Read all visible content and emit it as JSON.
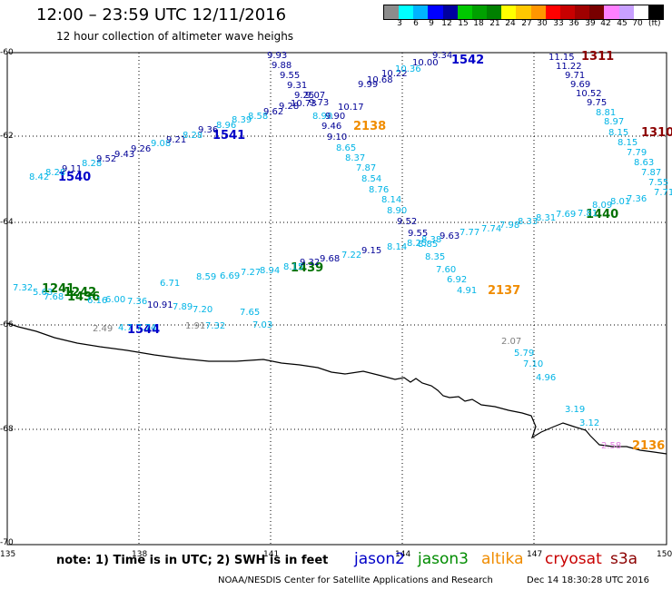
{
  "header": {
    "title": "12:00 – 23:59 UTC 12/11/2016",
    "subtitle": "12 hour collection of altimeter wave heighs"
  },
  "colorbar": {
    "colors": [
      "#8c8c8c",
      "#00ffff",
      "#00b4ff",
      "#0000ff",
      "#0000a0",
      "#00c800",
      "#00a000",
      "#008000",
      "#ffff00",
      "#ffc800",
      "#ff9600",
      "#ff0000",
      "#c80000",
      "#a00000",
      "#780000",
      "#ff80ff",
      "#c8a0ff",
      "#ffffff",
      "#000000"
    ],
    "ticks": [
      "3",
      "6",
      "9",
      "12",
      "15",
      "18",
      "21",
      "24",
      "27",
      "30",
      "33",
      "36",
      "39",
      "42",
      "45",
      "70"
    ],
    "unit": "(ft)"
  },
  "map": {
    "lat_labels": [
      "-60",
      "-62",
      "-64",
      "-66",
      "-68",
      "-70"
    ],
    "lon_labels": [
      "135",
      "138",
      "141",
      "144",
      "147",
      "150"
    ]
  },
  "passes": [
    {
      "label": "1540",
      "color": "#0000c8"
    },
    {
      "label": "1541",
      "color": "#0000c8"
    },
    {
      "label": "1542",
      "color": "#0000c8"
    },
    {
      "label": "1544",
      "color": "#0000c8"
    },
    {
      "label": "1241",
      "color": "#007000"
    },
    {
      "label": "1242",
      "color": "#007000"
    },
    {
      "label": "1436",
      "color": "#007000"
    },
    {
      "label": "1439",
      "color": "#007000"
    },
    {
      "label": "1440",
      "color": "#007000"
    },
    {
      "label": "2136",
      "color": "#f08c00"
    },
    {
      "label": "2137",
      "color": "#f08c00"
    },
    {
      "label": "2138",
      "color": "#f08c00"
    },
    {
      "label": "1310",
      "color": "#8c0000"
    },
    {
      "label": "1311",
      "color": "#8c0000"
    }
  ],
  "measurements": [
    {
      "v": "8.42",
      "c": "#00b4e6"
    },
    {
      "v": "8.28",
      "c": "#00b4e6"
    },
    {
      "v": "9.11",
      "c": "#000096"
    },
    {
      "v": "8.28",
      "c": "#00b4e6"
    },
    {
      "v": "9.52",
      "c": "#000096"
    },
    {
      "v": "9.43",
      "c": "#000096"
    },
    {
      "v": "9.26",
      "c": "#000096"
    },
    {
      "v": "9.08",
      "c": "#00b4e6"
    },
    {
      "v": "9.21",
      "c": "#000096"
    },
    {
      "v": "8.28",
      "c": "#00b4e6"
    },
    {
      "v": "9.36",
      "c": "#000096"
    },
    {
      "v": "8.96",
      "c": "#00b4e6"
    },
    {
      "v": "8.39",
      "c": "#00b4e6"
    },
    {
      "v": "8.58",
      "c": "#00b4e6"
    },
    {
      "v": "9.62",
      "c": "#000096"
    },
    {
      "v": "9.28",
      "c": "#000096"
    },
    {
      "v": "9.93",
      "c": "#000096"
    },
    {
      "v": "9.88",
      "c": "#000096"
    },
    {
      "v": "9.55",
      "c": "#000096"
    },
    {
      "v": "9.31",
      "c": "#000096"
    },
    {
      "v": "9.25",
      "c": "#000096"
    },
    {
      "v": "9.07",
      "c": "#000096"
    },
    {
      "v": "10.73",
      "c": "#000096"
    },
    {
      "v": "9.73",
      "c": "#000096"
    },
    {
      "v": "8.90",
      "c": "#00b4e6"
    },
    {
      "v": "9.46",
      "c": "#000096"
    },
    {
      "v": "9.10",
      "c": "#000096"
    },
    {
      "v": "8.65",
      "c": "#00b4e6"
    },
    {
      "v": "8.37",
      "c": "#00b4e6"
    },
    {
      "v": "7.87",
      "c": "#00b4e6"
    },
    {
      "v": "8.54",
      "c": "#00b4e6"
    },
    {
      "v": "8.76",
      "c": "#00b4e6"
    },
    {
      "v": "8.14",
      "c": "#00b4e6"
    },
    {
      "v": "8.90",
      "c": "#00b4e6"
    },
    {
      "v": "9.52",
      "c": "#000096"
    },
    {
      "v": "9.55",
      "c": "#000096"
    },
    {
      "v": "8.85",
      "c": "#00b4e6"
    },
    {
      "v": "8.35",
      "c": "#00b4e6"
    },
    {
      "v": "7.60",
      "c": "#00b4e6"
    },
    {
      "v": "6.92",
      "c": "#00b4e6"
    },
    {
      "v": "4.91",
      "c": "#00b4e6"
    },
    {
      "v": "9.90",
      "c": "#000096"
    },
    {
      "v": "10.17",
      "c": "#000096"
    },
    {
      "v": "9.99",
      "c": "#000096"
    },
    {
      "v": "10.68",
      "c": "#000096"
    },
    {
      "v": "10.22",
      "c": "#000096"
    },
    {
      "v": "10.36",
      "c": "#00b4e6"
    },
    {
      "v": "10.00",
      "c": "#000096"
    },
    {
      "v": "9.34",
      "c": "#000096"
    },
    {
      "v": "11.15",
      "c": "#000096"
    },
    {
      "v": "11.22",
      "c": "#000096"
    },
    {
      "v": "9.71",
      "c": "#000096"
    },
    {
      "v": "9.69",
      "c": "#000096"
    },
    {
      "v": "10.52",
      "c": "#000096"
    },
    {
      "v": "9.75",
      "c": "#000096"
    },
    {
      "v": "8.81",
      "c": "#00b4e6"
    },
    {
      "v": "8.97",
      "c": "#00b4e6"
    },
    {
      "v": "8.15",
      "c": "#00b4e6"
    },
    {
      "v": "8.15",
      "c": "#00b4e6"
    },
    {
      "v": "7.79",
      "c": "#00b4e6"
    },
    {
      "v": "8.63",
      "c": "#00b4e6"
    },
    {
      "v": "7.87",
      "c": "#00b4e6"
    },
    {
      "v": "7.55",
      "c": "#00b4e6"
    },
    {
      "v": "7.71",
      "c": "#00b4e6"
    },
    {
      "v": "7.36",
      "c": "#00b4e6"
    },
    {
      "v": "8.01",
      "c": "#00b4e6"
    },
    {
      "v": "8.09",
      "c": "#00b4e6"
    },
    {
      "v": "7.81",
      "c": "#00b4e6"
    },
    {
      "v": "7.69",
      "c": "#00b4e6"
    },
    {
      "v": "8.31",
      "c": "#00b4e6"
    },
    {
      "v": "8.33",
      "c": "#00b4e6"
    },
    {
      "v": "7.98",
      "c": "#00b4e6"
    },
    {
      "v": "7.74",
      "c": "#00b4e6"
    },
    {
      "v": "7.77",
      "c": "#00b4e6"
    },
    {
      "v": "9.63",
      "c": "#000096"
    },
    {
      "v": "8.38",
      "c": "#00b4e6"
    },
    {
      "v": "8.25",
      "c": "#00b4e6"
    },
    {
      "v": "8.14",
      "c": "#00b4e6"
    },
    {
      "v": "9.15",
      "c": "#000096"
    },
    {
      "v": "7.22",
      "c": "#00b4e6"
    },
    {
      "v": "9.68",
      "c": "#000096"
    },
    {
      "v": "9.32",
      "c": "#000096"
    },
    {
      "v": "8.15",
      "c": "#00b4e6"
    },
    {
      "v": "8.94",
      "c": "#00b4e6"
    },
    {
      "v": "7.27",
      "c": "#00b4e6"
    },
    {
      "v": "6.69",
      "c": "#00b4e6"
    },
    {
      "v": "8.59",
      "c": "#00b4e6"
    },
    {
      "v": "6.71",
      "c": "#00b4e6"
    },
    {
      "v": "7.32",
      "c": "#00b4e6"
    },
    {
      "v": "5.63",
      "c": "#00b4e6"
    },
    {
      "v": "7.68",
      "c": "#00b4e6"
    },
    {
      "v": "6.16",
      "c": "#00b4e6"
    },
    {
      "v": "6.00",
      "c": "#00b4e6"
    },
    {
      "v": "7.36",
      "c": "#00b4e6"
    },
    {
      "v": "10.91",
      "c": "#000096"
    },
    {
      "v": "7.89",
      "c": "#00b4e6"
    },
    {
      "v": "7.20",
      "c": "#00b4e6"
    },
    {
      "v": "7.65",
      "c": "#00b4e6"
    },
    {
      "v": "7.03",
      "c": "#00b4e6"
    },
    {
      "v": "2.49",
      "c": "#808080"
    },
    {
      "v": "4.7",
      "c": "#00b4e6"
    },
    {
      "v": "7.74",
      "c": "#00b4e6"
    },
    {
      "v": "1.91",
      "c": "#808080"
    },
    {
      "v": "7.32",
      "c": "#00b4e6"
    },
    {
      "v": "2.07",
      "c": "#808080"
    },
    {
      "v": "5.79",
      "c": "#00b4e6"
    },
    {
      "v": "7.10",
      "c": "#00b4e6"
    },
    {
      "v": "4.96",
      "c": "#00b4e6"
    },
    {
      "v": "3.19",
      "c": "#00b4e6"
    },
    {
      "v": "3.12",
      "c": "#00b4e6"
    },
    {
      "v": "2.58",
      "c": "#e080e0"
    }
  ],
  "footer": {
    "note": "note:  1) Time is in UTC;  2) SWH is in feet",
    "legend": [
      {
        "name": "jason2",
        "color": "#0000c8"
      },
      {
        "name": "jason3",
        "color": "#008c00"
      },
      {
        "name": "altika",
        "color": "#f08c00"
      },
      {
        "name": "cryosat",
        "color": "#c80000"
      },
      {
        "name": "s3a",
        "color": "#8c0000"
      }
    ],
    "credit": "NOAA/NESDIS Center for Satellite Applications and Research",
    "timestamp": "Dec 14 18:30:28 UTC 2016"
  }
}
